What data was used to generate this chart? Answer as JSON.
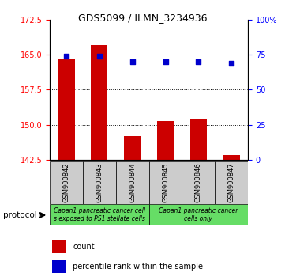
{
  "title": "GDS5099 / ILMN_3234936",
  "samples": [
    "GSM900842",
    "GSM900843",
    "GSM900844",
    "GSM900845",
    "GSM900846",
    "GSM900847"
  ],
  "counts": [
    164.0,
    167.0,
    147.5,
    150.8,
    151.2,
    143.5
  ],
  "percentile_ranks": [
    74,
    74,
    70,
    70,
    70,
    69
  ],
  "ylim_left": [
    142.5,
    172.5
  ],
  "yticks_left": [
    142.5,
    150.0,
    157.5,
    165.0,
    172.5
  ],
  "ylim_right": [
    0,
    100
  ],
  "yticks_right": [
    0,
    25,
    50,
    75,
    100
  ],
  "ytick_labels_right": [
    "0",
    "25",
    "50",
    "75",
    "100%"
  ],
  "bar_color": "#cc0000",
  "dot_color": "#0000cc",
  "protocol_groups": [
    {
      "label": "Capan1 pancreatic cancer cell\ns exposed to PS1 stellate cells",
      "color": "#66dd66"
    },
    {
      "label": "Capan1 pancreatic cancer\ncells only",
      "color": "#66dd66"
    }
  ],
  "legend_count_label": "count",
  "legend_pct_label": "percentile rank within the sample",
  "protocol_label": "protocol",
  "bar_width": 0.5,
  "dot_size": 25,
  "sample_box_color": "#cccccc",
  "title_fontsize": 9,
  "tick_fontsize": 7,
  "sample_fontsize": 6,
  "proto_fontsize": 5.5,
  "legend_fontsize": 7
}
